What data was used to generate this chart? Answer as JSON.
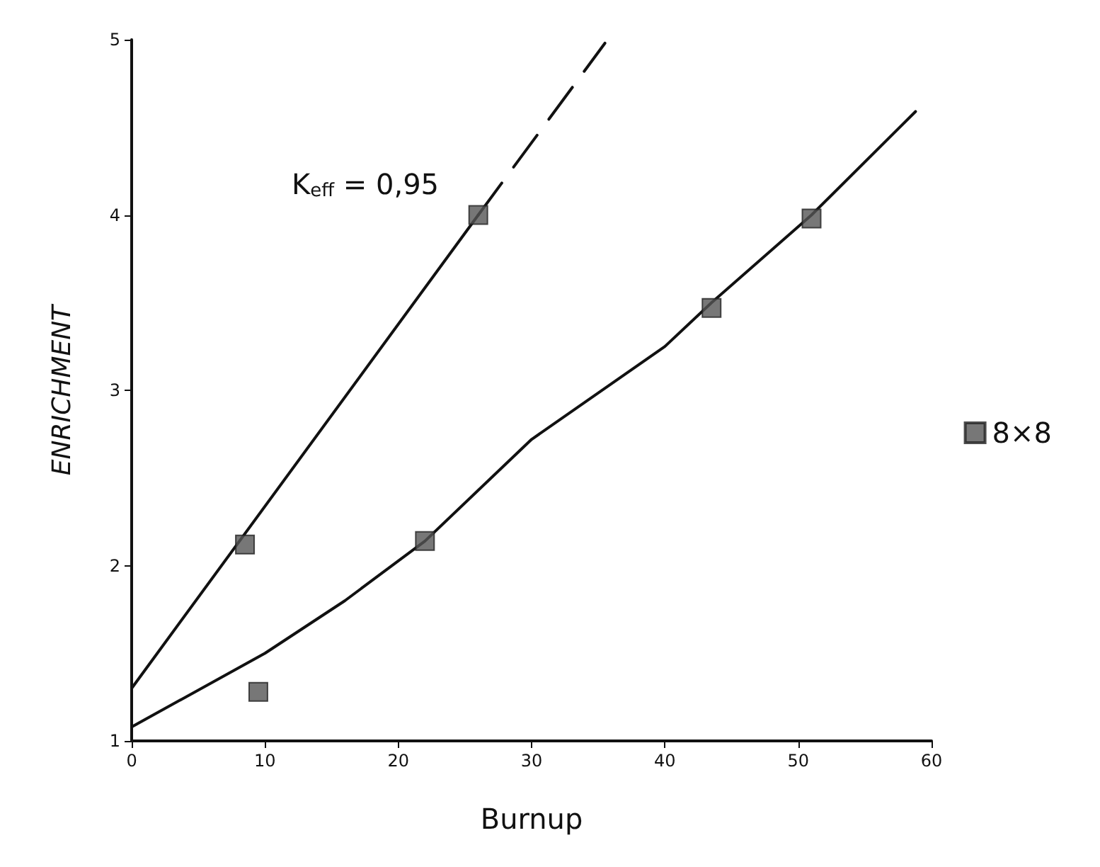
{
  "chart_data": {
    "type": "line",
    "xlabel": "Burnup",
    "ylabel": "ENRICHMENT",
    "xlim": [
      0,
      60
    ],
    "xticks": [
      0,
      10,
      20,
      30,
      40,
      50,
      60
    ],
    "ylim": [
      1,
      5
    ],
    "yticks": [
      1,
      2,
      3,
      4,
      5
    ],
    "grid": false,
    "legend": "right",
    "annotations": [
      "K$_{eff}$ = 0,95"
    ],
    "series": [
      {
        "color": "#111111",
        "line_style": "solid",
        "marker": "none",
        "x": [
          0,
          26
        ],
        "values": [
          1.3,
          4.0
        ]
      },
      {
        "color": "#111111",
        "line_style": "dashed",
        "marker": "none",
        "x": [
          26,
          35.5
        ],
        "values": [
          4.0,
          4.98
        ]
      },
      {
        "color": "#111111",
        "line_style": "solid",
        "marker": "none",
        "x": [
          0,
          10,
          16,
          22,
          30,
          40,
          43.5,
          51,
          58.8
        ],
        "values": [
          1.08,
          1.5,
          1.8,
          2.14,
          2.72,
          3.25,
          3.5,
          4.0,
          4.59
        ]
      },
      {
        "type": "scatter",
        "name": "8×8",
        "color": "#555555",
        "marker": "square",
        "x": [
          8.5,
          26,
          9.5,
          22,
          43.5,
          51
        ],
        "values": [
          2.12,
          4.0,
          1.28,
          2.14,
          3.47,
          3.98
        ]
      }
    ]
  }
}
